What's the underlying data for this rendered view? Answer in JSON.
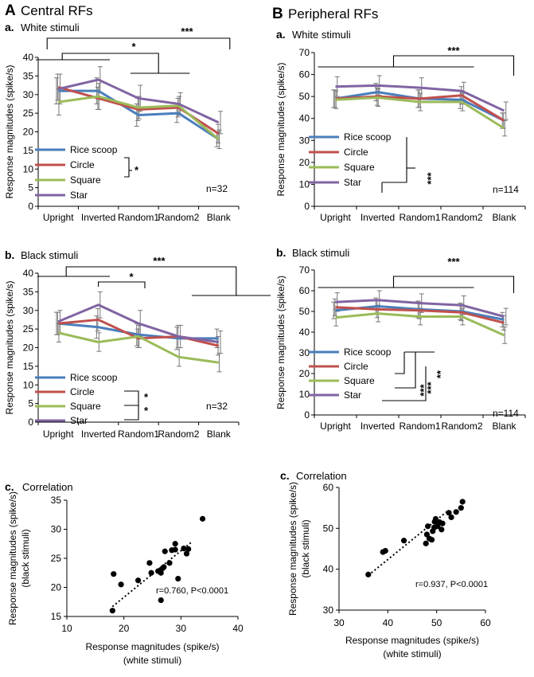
{
  "figure": {
    "panel_A": {
      "letter": "A",
      "title": "Central RFs"
    },
    "panel_B": {
      "letter": "B",
      "title": "Peripheral RFs"
    }
  },
  "colors": {
    "Rice scoop": "#4a7ebb",
    "Circle": "#c0504d",
    "Square": "#9bbb59",
    "Star": "#8064a2",
    "errorbar": "#777777"
  },
  "chart_data": [
    {
      "id": "A-a",
      "type": "line",
      "label": "a.",
      "title": "White stimuli",
      "categories": [
        "Upright",
        "Inverted",
        "Random1",
        "Random2",
        "Blank"
      ],
      "series": [
        {
          "name": "Rice scoop",
          "values": [
            31,
            31,
            24.5,
            25,
            18
          ],
          "err": [
            3.5,
            3.5,
            3,
            2.5,
            2
          ]
        },
        {
          "name": "Circle",
          "values": [
            32,
            29,
            26,
            26.5,
            19.5
          ],
          "err": [
            3.5,
            3,
            3,
            2.5,
            2.5
          ]
        },
        {
          "name": "Square",
          "values": [
            28,
            29.5,
            26.5,
            27,
            18
          ],
          "err": [
            3.5,
            3.5,
            3,
            2.5,
            2.5
          ]
        },
        {
          "name": "Star",
          "values": [
            31.5,
            34,
            29,
            27.5,
            22.5
          ],
          "err": [
            4,
            3.5,
            3.5,
            3,
            3
          ]
        }
      ],
      "ylabel": "Response magnitudes (spike/s)",
      "ylim": [
        0,
        40
      ],
      "yticks": [
        0,
        5,
        10,
        15,
        20,
        25,
        30,
        35,
        40
      ],
      "n_label": "n=32",
      "significance": [
        "***",
        "*",
        "*"
      ]
    },
    {
      "id": "A-b",
      "type": "line",
      "label": "b.",
      "title": "Black stimuli",
      "categories": [
        "Upright",
        "Inverted",
        "Random1",
        "Random2",
        "Blank"
      ],
      "series": [
        {
          "name": "Rice scoop",
          "values": [
            26.5,
            25.5,
            23.5,
            22.5,
            22.5
          ],
          "err": [
            3,
            3,
            3,
            3,
            2.5
          ]
        },
        {
          "name": "Circle",
          "values": [
            26.5,
            27.5,
            22.5,
            23,
            20.5
          ],
          "err": [
            3,
            3,
            2.5,
            3,
            2.5
          ]
        },
        {
          "name": "Square",
          "values": [
            24,
            21.5,
            23,
            17.5,
            16
          ],
          "err": [
            2.5,
            2.5,
            3,
            2.5,
            2.5
          ]
        },
        {
          "name": "Star",
          "values": [
            27,
            31.5,
            26.5,
            23,
            21.5
          ],
          "err": [
            3,
            3.5,
            3.5,
            3,
            3
          ]
        }
      ],
      "ylabel": "Response magnitudes (spike/s)",
      "ylim": [
        0,
        40
      ],
      "yticks": [
        0,
        5,
        10,
        15,
        20,
        25,
        30,
        35,
        40
      ],
      "n_label": "n=32",
      "significance": [
        "***",
        "*",
        "*",
        "*"
      ]
    },
    {
      "id": "B-a",
      "type": "line",
      "label": "a.",
      "title": "White stimuli",
      "categories": [
        "Upright",
        "Inverted",
        "Random1",
        "Random2",
        "Blank"
      ],
      "series": [
        {
          "name": "Rice scoop",
          "values": [
            49,
            52,
            49,
            48.5,
            39
          ],
          "err": [
            4,
            4,
            4,
            4,
            3.5
          ]
        },
        {
          "name": "Circle",
          "values": [
            49,
            50,
            49,
            50.5,
            39
          ],
          "err": [
            4,
            4,
            4,
            4,
            3.5
          ]
        },
        {
          "name": "Square",
          "values": [
            48.5,
            49.5,
            47.5,
            47.5,
            35.5
          ],
          "err": [
            4,
            4,
            4,
            4,
            3.5
          ]
        },
        {
          "name": "Star",
          "values": [
            54.5,
            55,
            54,
            52.5,
            43.5
          ],
          "err": [
            4.5,
            4.5,
            4.5,
            4,
            4
          ]
        }
      ],
      "ylabel": "Response magnitudes (spike/s)",
      "ylim": [
        0,
        70
      ],
      "yticks": [
        0,
        10,
        20,
        30,
        40,
        50,
        60,
        70
      ],
      "n_label": "n=114",
      "significance": [
        "***",
        "***"
      ]
    },
    {
      "id": "B-b",
      "type": "line",
      "label": "b.",
      "title": "Black stimuli",
      "categories": [
        "Upright",
        "Inverted",
        "Random1",
        "Random2",
        "Blank"
      ],
      "series": [
        {
          "name": "Rice scoop",
          "values": [
            50.5,
            52.5,
            51,
            50,
            46
          ],
          "err": [
            4,
            4,
            4,
            4,
            3.5
          ]
        },
        {
          "name": "Circle",
          "values": [
            52,
            51,
            50.5,
            49.5,
            44.5
          ],
          "err": [
            4,
            4,
            4,
            4,
            3.5
          ]
        },
        {
          "name": "Square",
          "values": [
            47,
            49,
            47.5,
            47.5,
            38.5
          ],
          "err": [
            4,
            4,
            4,
            4,
            4
          ]
        },
        {
          "name": "Star",
          "values": [
            54.5,
            55.5,
            54,
            53,
            47.5
          ],
          "err": [
            4.5,
            4.5,
            4.5,
            4.5,
            4
          ]
        }
      ],
      "ylabel": "Response magnitudes (spike/s)",
      "ylim": [
        0,
        70
      ],
      "yticks": [
        0,
        10,
        20,
        30,
        40,
        50,
        60,
        70
      ],
      "n_label": "n=114",
      "significance": [
        "***",
        "***",
        "***",
        "**"
      ]
    },
    {
      "id": "A-c",
      "type": "scatter",
      "label": "c.",
      "title": "Correlation",
      "xlabel": "Response magnitudes (spike/s)",
      "xlabel2": "(white stimuli)",
      "ylabel": "Response magnitudes (spike/s)",
      "ylabel2": "(black stimuli)",
      "xlim": [
        10,
        40
      ],
      "ylim": [
        15,
        35
      ],
      "xticks": [
        10,
        20,
        30,
        40
      ],
      "yticks": [
        15,
        20,
        25,
        30,
        35
      ],
      "points": [
        [
          18,
          16
        ],
        [
          18.2,
          22.3
        ],
        [
          19.5,
          20.5
        ],
        [
          22.5,
          21.2
        ],
        [
          24.5,
          24.2
        ],
        [
          24.8,
          22.5
        ],
        [
          26,
          22.8
        ],
        [
          26.5,
          17.8
        ],
        [
          26.5,
          22.5
        ],
        [
          26.8,
          23.3
        ],
        [
          27,
          23.5
        ],
        [
          27.2,
          26.2
        ],
        [
          28,
          24.2
        ],
        [
          28.4,
          26.4
        ],
        [
          29,
          27.5
        ],
        [
          29,
          26.5
        ],
        [
          29.5,
          21.5
        ],
        [
          30.5,
          26.7
        ],
        [
          31,
          25.8
        ],
        [
          31.3,
          26.6
        ],
        [
          33.8,
          31.8
        ]
      ],
      "trend": [
        [
          18,
          16.7
        ],
        [
          32,
          27.9
        ]
      ],
      "stat": "r=0.760, P<0.0001"
    },
    {
      "id": "B-c",
      "type": "scatter",
      "label": "c.",
      "title": "Correlation",
      "xlabel": "Response magnitudes (spike/s)",
      "xlabel2": "(white stimuli)",
      "ylabel": "Response magnitudes (spike/s)",
      "ylabel2": "(black stimuli)",
      "xlim": [
        30,
        60
      ],
      "ylim": [
        30,
        60
      ],
      "xticks": [
        30,
        40,
        50,
        60
      ],
      "yticks": [
        30,
        40,
        50,
        60
      ],
      "points": [
        [
          36,
          38.7
        ],
        [
          39,
          44.2
        ],
        [
          39.5,
          44.5
        ],
        [
          43.3,
          47
        ],
        [
          47.8,
          46.3
        ],
        [
          48,
          48.5
        ],
        [
          48.2,
          50.5
        ],
        [
          48.5,
          47.5
        ],
        [
          49,
          47.2
        ],
        [
          49.2,
          49.3
        ],
        [
          49.5,
          50.2
        ],
        [
          49.6,
          51.6
        ],
        [
          49.8,
          52.3
        ],
        [
          50.2,
          50.5
        ],
        [
          50.6,
          51.5
        ],
        [
          51,
          49.7
        ],
        [
          51.2,
          51.2
        ],
        [
          52.5,
          53.8
        ],
        [
          53,
          52.7
        ],
        [
          54,
          54
        ],
        [
          55,
          55
        ],
        [
          55.3,
          56.5
        ]
      ],
      "trend": [
        [
          36,
          38.5
        ],
        [
          52,
          54
        ]
      ],
      "stat": "r=0.937, P<0.0001"
    }
  ]
}
